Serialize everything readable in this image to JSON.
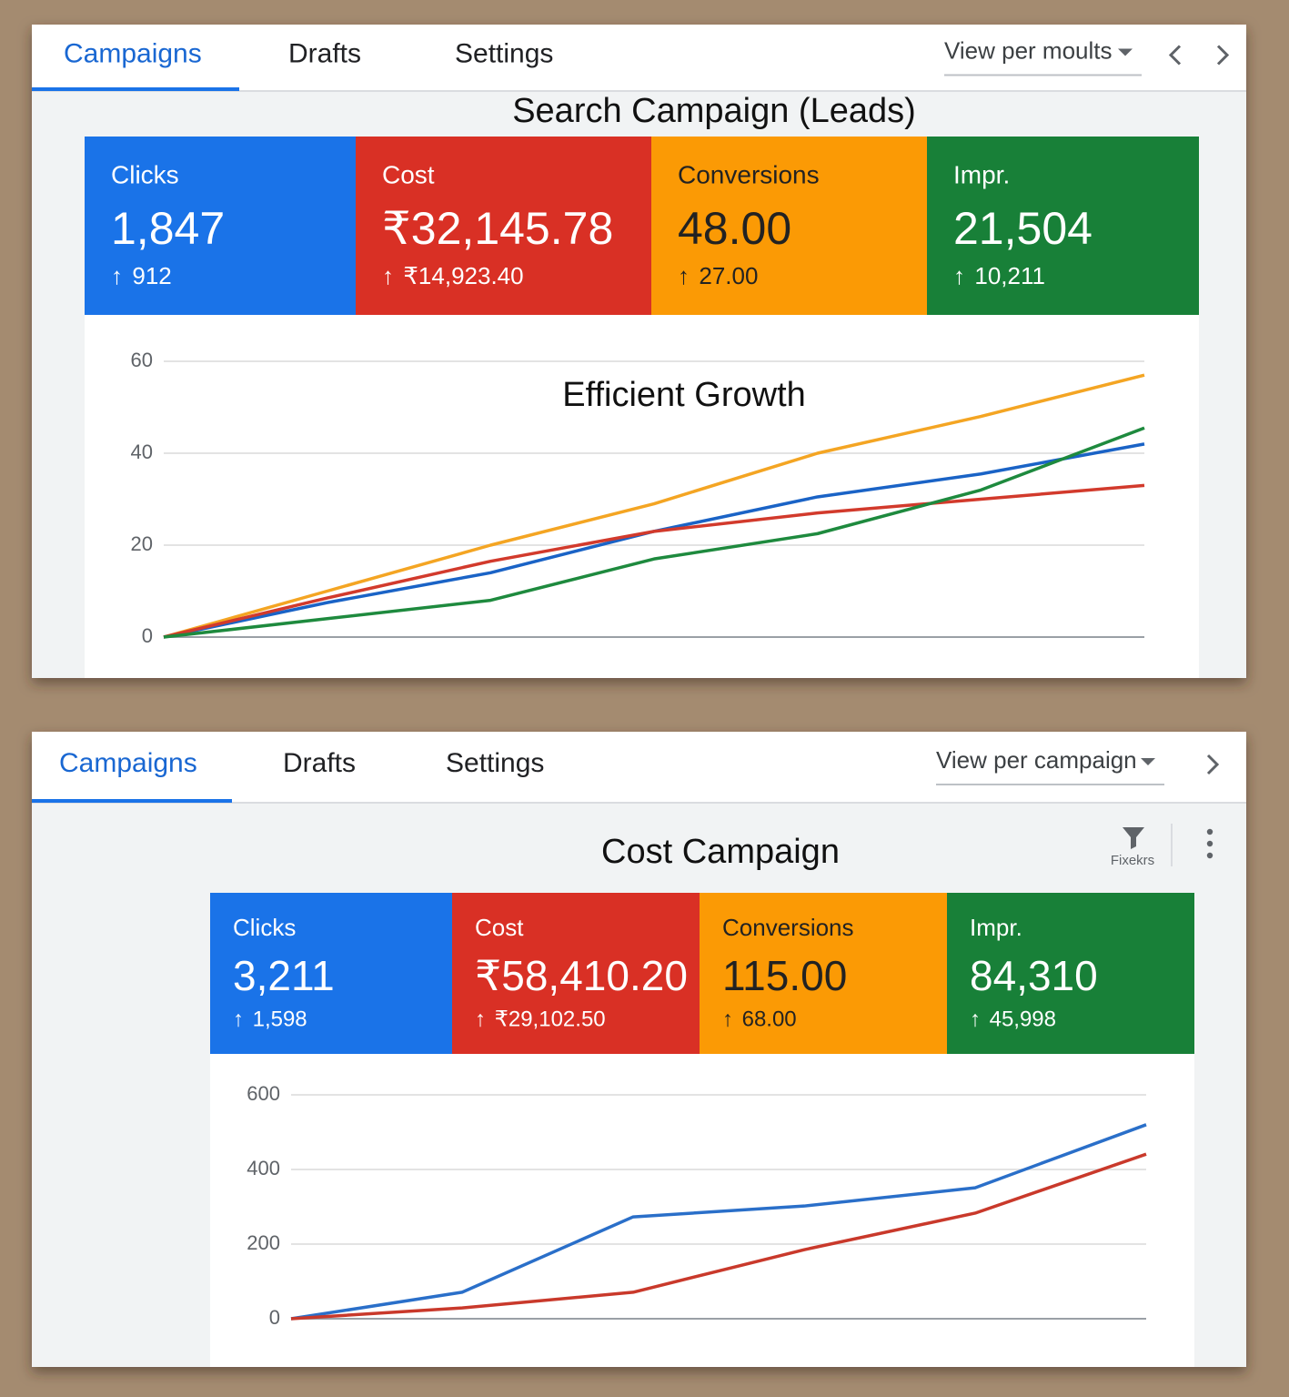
{
  "panels": [
    {
      "tabs": [
        "Campaigns",
        "Drafts",
        "Settings"
      ],
      "view_menu": "View per moults",
      "title": "Search Campaign (Leads)",
      "metrics": [
        {
          "label": "Clicks",
          "value": "1,847",
          "change": "912"
        },
        {
          "label": "Cost",
          "value": "₹32,145.78",
          "change": "₹14,923.40"
        },
        {
          "label": "Conversions",
          "value": "48.00",
          "change": "27.00"
        },
        {
          "label": "Impr.",
          "value": "21,504",
          "change": "10,211"
        }
      ]
    },
    {
      "tabs": [
        "Campaigns",
        "Drafts",
        "Settings"
      ],
      "view_menu": "View per campaign",
      "title": "Cost Campaign",
      "filter_label": "Fixekrs",
      "metrics": [
        {
          "label": "Clicks",
          "value": "3,211",
          "change": "1,598"
        },
        {
          "label": "Cost",
          "value": "₹58,410.20",
          "change": "₹29,102.50"
        },
        {
          "label": "Conversions",
          "value": "115.00",
          "change": "68.00"
        },
        {
          "label": "Impr.",
          "value": "84,310",
          "change": "45,998"
        }
      ]
    }
  ],
  "chart_data": [
    {
      "type": "line",
      "title": "Efficient Growth",
      "categories": [
        null,
        null,
        null,
        null,
        null,
        null,
        null
      ],
      "series": [
        {
          "color": "#f4a523",
          "values": [
            0,
            10,
            20,
            29,
            40,
            48,
            57
          ]
        },
        {
          "color": "#1a63c6",
          "values": [
            0,
            7.5,
            14,
            23,
            30.5,
            35.5,
            42
          ]
        },
        {
          "color": "#d23a2c",
          "values": [
            0,
            8.5,
            16.5,
            23,
            27,
            30,
            33
          ]
        },
        {
          "color": "#1e8a3e",
          "values": [
            0,
            4,
            8,
            17,
            22.5,
            32,
            45.5
          ]
        }
      ],
      "ylim": [
        0,
        60
      ],
      "yticks": [
        0,
        20,
        40,
        60
      ],
      "grid": true
    },
    {
      "type": "line",
      "categories": [
        null,
        null,
        null,
        null,
        null,
        null
      ],
      "series": [
        {
          "color": "#2a6fc9",
          "values": [
            0,
            71,
            273,
            302,
            351,
            520
          ]
        },
        {
          "color": "#c9392b",
          "values": [
            0,
            29,
            71,
            185,
            283,
            441
          ]
        }
      ],
      "ylim": [
        0,
        600
      ],
      "yticks": [
        0,
        200,
        400,
        600
      ],
      "grid": true
    }
  ]
}
